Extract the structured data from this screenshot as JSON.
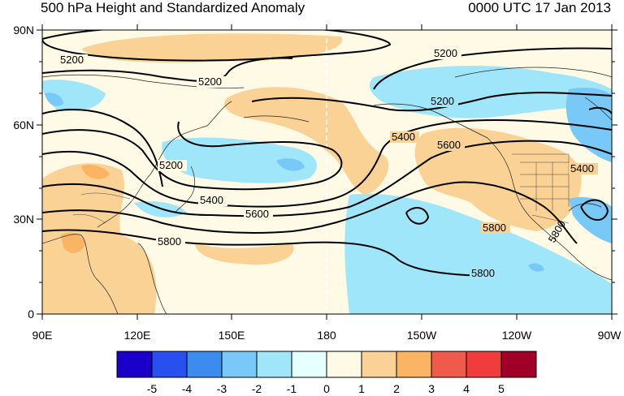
{
  "header": {
    "title": "500 hPa Height and Standardized Anomaly",
    "time": "0000 UTC 17 Jan 2013"
  },
  "map": {
    "lat_ticks": [
      "90N",
      "60N",
      "30N",
      "0"
    ],
    "lon_ticks": [
      "90E",
      "120E",
      "150E",
      "180",
      "150W",
      "120W",
      "90W"
    ],
    "contour_labels": [
      {
        "text": "5200",
        "name": "contour-label-5200-nw"
      },
      {
        "text": "5200",
        "name": "contour-label-5200-north"
      },
      {
        "text": "5200",
        "name": "contour-label-5200-ne"
      },
      {
        "text": "5200",
        "name": "contour-label-5200-east"
      },
      {
        "text": "5200",
        "name": "contour-label-5200-japan"
      },
      {
        "text": "5400",
        "name": "contour-label-5400-west"
      },
      {
        "text": "5400",
        "name": "contour-label-5400-central"
      },
      {
        "text": "5400",
        "name": "contour-label-5400-east"
      },
      {
        "text": "5600",
        "name": "contour-label-5600-west"
      },
      {
        "text": "5600",
        "name": "contour-label-5600-east"
      },
      {
        "text": "5800",
        "name": "contour-label-5800-west"
      },
      {
        "text": "5800",
        "name": "contour-label-5800-pacific"
      },
      {
        "text": "5800",
        "name": "contour-label-5800-east"
      },
      {
        "text": "5800",
        "name": "contour-label-5800-mexico"
      }
    ]
  },
  "colorbar": {
    "labels": [
      "-5",
      "-4",
      "-3",
      "-2",
      "-1",
      "0",
      "1",
      "2",
      "3",
      "4",
      "5"
    ],
    "colors": [
      "#1a00c8",
      "#2850f0",
      "#3c8cf0",
      "#78c8f8",
      "#a0e6fa",
      "#e6ffff",
      "#fffae6",
      "#fad296",
      "#fab464",
      "#f05a4b",
      "#f03c3c",
      "#a00028"
    ]
  },
  "colors": {
    "positive_anomaly": "#fad296",
    "strong_positive": "#fab464",
    "negative_anomaly": "#a0e6fa",
    "strong_negative": "#78c8f8",
    "background": "#fffae6"
  }
}
